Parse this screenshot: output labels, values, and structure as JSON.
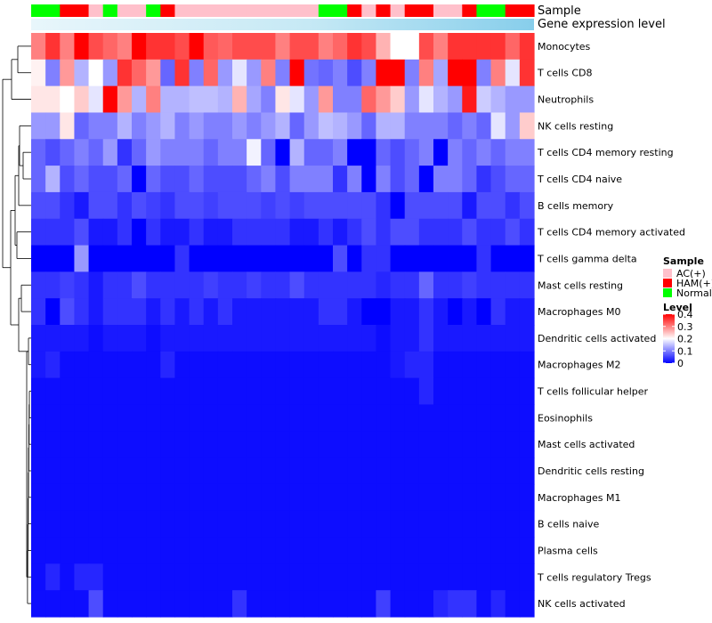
{
  "chart_data": {
    "type": "heatmap",
    "title": "",
    "annotation_labels": {
      "sample": "Sample",
      "expression": "Gene expression level"
    },
    "rows": [
      "Monocytes",
      "T cells CD8",
      "Neutrophils",
      "NK cells resting",
      "T cells CD4 memory resting",
      "T cells CD4 naive",
      "B cells memory",
      "T cells CD4 memory activated",
      "T cells gamma delta",
      "Mast cells resting",
      "Macrophages M0",
      "Dendritic cells activated",
      "Macrophages M2",
      "T cells follicular helper",
      "Eosinophils",
      "Mast cells activated",
      "Dendritic cells resting",
      "Macrophages M1",
      "B cells naive",
      "Plasma cells",
      "T cells regulatory  Tregs",
      "NK cells activated"
    ],
    "sample_groups": [
      "N",
      "N",
      "H",
      "H",
      "A",
      "N",
      "A",
      "A",
      "N",
      "H",
      "A",
      "A",
      "A",
      "A",
      "A",
      "A",
      "A",
      "A",
      "A",
      "A",
      "N",
      "N",
      "H",
      "A",
      "H",
      "A",
      "H",
      "H",
      "A",
      "A",
      "H",
      "N",
      "N",
      "H",
      "H"
    ],
    "values": [
      [
        0.3,
        0.36,
        0.3,
        0.4,
        0.34,
        0.32,
        0.3,
        0.4,
        0.36,
        0.36,
        0.34,
        0.42,
        0.33,
        0.32,
        0.34,
        0.34,
        0.34,
        0.3,
        0.34,
        0.34,
        0.3,
        0.32,
        0.36,
        0.34,
        0.26,
        0.2,
        0.2,
        0.34,
        0.3,
        0.36,
        0.36,
        0.36,
        0.36,
        0.32,
        0.36
      ],
      [
        0.21,
        0.1,
        0.28,
        0.14,
        0.2,
        0.12,
        0.36,
        0.32,
        0.28,
        0.08,
        0.36,
        0.1,
        0.32,
        0.12,
        0.18,
        0.12,
        0.3,
        0.1,
        0.4,
        0.09,
        0.08,
        0.1,
        0.06,
        0.1,
        0.4,
        0.4,
        0.1,
        0.3,
        0.13,
        0.4,
        0.4,
        0.1,
        0.3,
        0.18,
        0.36
      ],
      [
        0.22,
        0.22,
        0.2,
        0.24,
        0.18,
        0.4,
        0.28,
        0.14,
        0.3,
        0.14,
        0.14,
        0.15,
        0.15,
        0.14,
        0.26,
        0.13,
        0.1,
        0.22,
        0.18,
        0.12,
        0.28,
        0.1,
        0.1,
        0.32,
        0.28,
        0.24,
        0.12,
        0.18,
        0.14,
        0.12,
        0.38,
        0.16,
        0.14,
        0.12,
        0.12
      ],
      [
        0.12,
        0.12,
        0.22,
        0.08,
        0.1,
        0.1,
        0.14,
        0.1,
        0.12,
        0.14,
        0.1,
        0.12,
        0.1,
        0.1,
        0.12,
        0.1,
        0.12,
        0.14,
        0.08,
        0.12,
        0.15,
        0.14,
        0.12,
        0.08,
        0.14,
        0.14,
        0.1,
        0.1,
        0.1,
        0.08,
        0.1,
        0.08,
        0.18,
        0.12,
        0.24
      ],
      [
        0.08,
        0.06,
        0.08,
        0.1,
        0.08,
        0.12,
        0.04,
        0.08,
        0.12,
        0.1,
        0.1,
        0.1,
        0.08,
        0.1,
        0.1,
        0.19,
        0.08,
        0.0,
        0.14,
        0.08,
        0.08,
        0.1,
        0.0,
        0.0,
        0.08,
        0.06,
        0.08,
        0.1,
        0.0,
        0.1,
        0.08,
        0.1,
        0.08,
        0.1,
        0.1
      ],
      [
        0.08,
        0.14,
        0.06,
        0.08,
        0.06,
        0.06,
        0.08,
        0.0,
        0.08,
        0.06,
        0.06,
        0.08,
        0.06,
        0.06,
        0.06,
        0.08,
        0.1,
        0.06,
        0.1,
        0.1,
        0.1,
        0.04,
        0.1,
        0.0,
        0.1,
        0.06,
        0.08,
        0.0,
        0.1,
        0.1,
        0.08,
        0.04,
        0.06,
        0.08,
        0.08
      ],
      [
        0.06,
        0.06,
        0.04,
        0.02,
        0.06,
        0.06,
        0.04,
        0.06,
        0.05,
        0.04,
        0.06,
        0.06,
        0.05,
        0.06,
        0.06,
        0.06,
        0.05,
        0.06,
        0.05,
        0.06,
        0.06,
        0.06,
        0.06,
        0.06,
        0.04,
        0.0,
        0.06,
        0.06,
        0.06,
        0.06,
        0.02,
        0.06,
        0.06,
        0.04,
        0.06
      ],
      [
        0.04,
        0.04,
        0.04,
        0.06,
        0.02,
        0.02,
        0.04,
        0.0,
        0.04,
        0.02,
        0.02,
        0.04,
        0.02,
        0.02,
        0.04,
        0.04,
        0.04,
        0.04,
        0.02,
        0.02,
        0.04,
        0.02,
        0.04,
        0.06,
        0.04,
        0.06,
        0.06,
        0.04,
        0.04,
        0.04,
        0.06,
        0.04,
        0.04,
        0.06,
        0.04
      ],
      [
        0.0,
        0.0,
        0.0,
        0.12,
        0.0,
        0.0,
        0.0,
        0.0,
        0.0,
        0.0,
        0.04,
        0.0,
        0.0,
        0.0,
        0.0,
        0.0,
        0.0,
        0.0,
        0.0,
        0.0,
        0.0,
        0.06,
        0.0,
        0.04,
        0.04,
        0.0,
        0.0,
        0.0,
        0.0,
        0.0,
        0.0,
        0.04,
        0.0,
        0.0,
        0.0
      ],
      [
        0.04,
        0.04,
        0.05,
        0.04,
        0.02,
        0.04,
        0.04,
        0.06,
        0.04,
        0.04,
        0.04,
        0.04,
        0.05,
        0.04,
        0.04,
        0.05,
        0.04,
        0.04,
        0.06,
        0.04,
        0.04,
        0.04,
        0.04,
        0.04,
        0.03,
        0.04,
        0.04,
        0.08,
        0.04,
        0.04,
        0.05,
        0.04,
        0.04,
        0.04,
        0.04
      ],
      [
        0.04,
        0.0,
        0.06,
        0.04,
        0.02,
        0.04,
        0.04,
        0.04,
        0.02,
        0.04,
        0.02,
        0.04,
        0.02,
        0.04,
        0.02,
        0.02,
        0.02,
        0.02,
        0.02,
        0.02,
        0.04,
        0.04,
        0.02,
        0.0,
        0.0,
        0.02,
        0.02,
        0.04,
        0.02,
        0.0,
        0.02,
        0.0,
        0.04,
        0.02,
        0.02
      ],
      [
        0.02,
        0.02,
        0.02,
        0.02,
        0.01,
        0.02,
        0.02,
        0.02,
        0.01,
        0.02,
        0.02,
        0.02,
        0.02,
        0.02,
        0.02,
        0.02,
        0.02,
        0.02,
        0.02,
        0.02,
        0.02,
        0.02,
        0.02,
        0.02,
        0.01,
        0.02,
        0.02,
        0.04,
        0.02,
        0.02,
        0.02,
        0.02,
        0.02,
        0.02,
        0.02
      ],
      [
        0.02,
        0.03,
        0.01,
        0.01,
        0.01,
        0.01,
        0.01,
        0.01,
        0.01,
        0.03,
        0.01,
        0.01,
        0.01,
        0.01,
        0.01,
        0.01,
        0.01,
        0.01,
        0.01,
        0.01,
        0.01,
        0.01,
        0.01,
        0.01,
        0.01,
        0.02,
        0.03,
        0.03,
        0.01,
        0.01,
        0.01,
        0.01,
        0.01,
        0.01,
        0.01
      ],
      [
        0.01,
        0.01,
        0.01,
        0.01,
        0.01,
        0.01,
        0.01,
        0.01,
        0.01,
        0.01,
        0.01,
        0.01,
        0.01,
        0.01,
        0.01,
        0.01,
        0.01,
        0.01,
        0.01,
        0.01,
        0.01,
        0.01,
        0.01,
        0.01,
        0.01,
        0.01,
        0.01,
        0.03,
        0.01,
        0.01,
        0.01,
        0.01,
        0.01,
        0.01,
        0.01
      ],
      [
        0.01,
        0.01,
        0.01,
        0.01,
        0.01,
        0.01,
        0.01,
        0.01,
        0.01,
        0.01,
        0.01,
        0.01,
        0.01,
        0.01,
        0.01,
        0.01,
        0.01,
        0.01,
        0.01,
        0.01,
        0.01,
        0.01,
        0.01,
        0.01,
        0.01,
        0.01,
        0.01,
        0.01,
        0.01,
        0.01,
        0.01,
        0.01,
        0.01,
        0.01,
        0.01
      ],
      [
        0.01,
        0.01,
        0.01,
        0.01,
        0.01,
        0.01,
        0.01,
        0.01,
        0.01,
        0.01,
        0.01,
        0.01,
        0.01,
        0.01,
        0.01,
        0.01,
        0.01,
        0.01,
        0.01,
        0.01,
        0.01,
        0.01,
        0.01,
        0.01,
        0.01,
        0.01,
        0.01,
        0.01,
        0.01,
        0.01,
        0.01,
        0.01,
        0.01,
        0.01,
        0.01
      ],
      [
        0.01,
        0.01,
        0.01,
        0.01,
        0.01,
        0.01,
        0.01,
        0.01,
        0.01,
        0.01,
        0.01,
        0.01,
        0.01,
        0.01,
        0.01,
        0.01,
        0.01,
        0.01,
        0.01,
        0.01,
        0.01,
        0.01,
        0.01,
        0.01,
        0.01,
        0.01,
        0.01,
        0.01,
        0.01,
        0.01,
        0.01,
        0.01,
        0.01,
        0.01,
        0.01
      ],
      [
        0.01,
        0.01,
        0.01,
        0.01,
        0.01,
        0.01,
        0.01,
        0.01,
        0.01,
        0.01,
        0.01,
        0.01,
        0.01,
        0.01,
        0.01,
        0.01,
        0.01,
        0.01,
        0.01,
        0.01,
        0.01,
        0.01,
        0.01,
        0.01,
        0.01,
        0.01,
        0.01,
        0.01,
        0.01,
        0.01,
        0.01,
        0.01,
        0.01,
        0.01,
        0.01
      ],
      [
        0.01,
        0.01,
        0.01,
        0.01,
        0.01,
        0.01,
        0.01,
        0.01,
        0.01,
        0.01,
        0.01,
        0.01,
        0.01,
        0.01,
        0.01,
        0.01,
        0.01,
        0.01,
        0.01,
        0.01,
        0.01,
        0.01,
        0.01,
        0.01,
        0.01,
        0.01,
        0.01,
        0.01,
        0.01,
        0.01,
        0.01,
        0.01,
        0.01,
        0.01,
        0.01
      ],
      [
        0.01,
        0.01,
        0.01,
        0.01,
        0.01,
        0.01,
        0.01,
        0.01,
        0.01,
        0.01,
        0.01,
        0.01,
        0.01,
        0.01,
        0.01,
        0.01,
        0.01,
        0.01,
        0.01,
        0.01,
        0.01,
        0.01,
        0.01,
        0.01,
        0.01,
        0.01,
        0.01,
        0.01,
        0.01,
        0.01,
        0.01,
        0.01,
        0.01,
        0.01,
        0.01
      ],
      [
        0.01,
        0.03,
        0.01,
        0.03,
        0.03,
        0.01,
        0.01,
        0.01,
        0.01,
        0.01,
        0.01,
        0.01,
        0.01,
        0.01,
        0.01,
        0.01,
        0.01,
        0.01,
        0.01,
        0.01,
        0.01,
        0.01,
        0.01,
        0.01,
        0.01,
        0.01,
        0.01,
        0.01,
        0.01,
        0.01,
        0.01,
        0.01,
        0.01,
        0.01,
        0.01
      ],
      [
        0.01,
        0.01,
        0.01,
        0.01,
        0.06,
        0.01,
        0.01,
        0.01,
        0.01,
        0.01,
        0.01,
        0.01,
        0.01,
        0.01,
        0.04,
        0.01,
        0.01,
        0.01,
        0.01,
        0.01,
        0.01,
        0.01,
        0.01,
        0.01,
        0.05,
        0.01,
        0.01,
        0.01,
        0.03,
        0.04,
        0.04,
        0.01,
        0.03,
        0.01,
        0.01
      ]
    ],
    "color_scale": {
      "min": 0,
      "mid": 0.2,
      "max": 0.4,
      "low": "#0000ff",
      "midcolor": "#ffffff",
      "high": "#ff0000"
    },
    "expression_bar_color": "#87ceeb",
    "legends": {
      "sample": {
        "title": "Sample",
        "entries": [
          {
            "label": "AC(+)",
            "color": "#ffc0cb"
          },
          {
            "label": "HAM(+)",
            "color": "#ff0000"
          },
          {
            "label": "Normal",
            "color": "#00ff00"
          }
        ]
      },
      "level": {
        "title": "Level",
        "ticks": [
          {
            "value": 0.4,
            "label": "0.4"
          },
          {
            "value": 0.3,
            "label": "0.3"
          },
          {
            "value": 0.2,
            "label": "0.2"
          },
          {
            "value": 0.1,
            "label": "0.1"
          },
          {
            "value": 0,
            "label": "0"
          }
        ]
      }
    }
  }
}
